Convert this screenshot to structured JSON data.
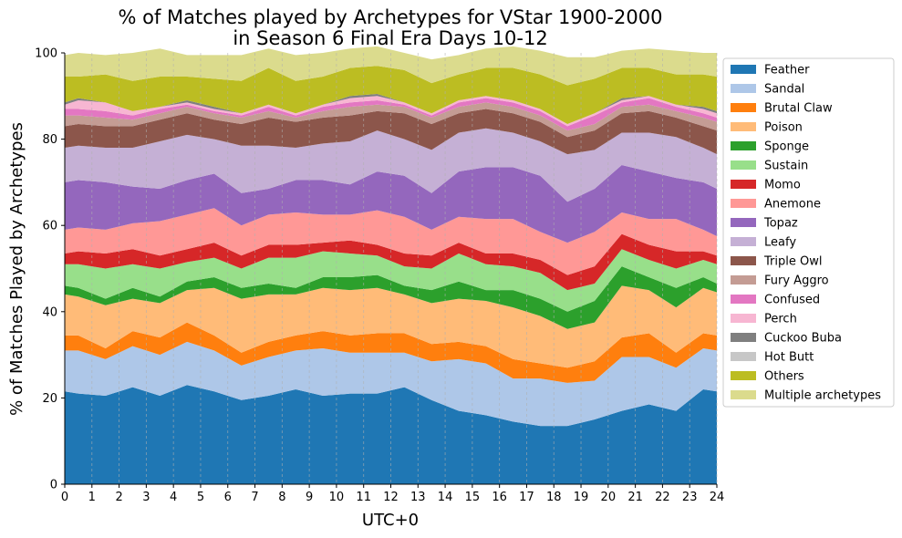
{
  "chart_data": {
    "type": "area",
    "stacked": true,
    "title_lines": [
      "% of Matches played by Archetypes for VStar 1900-2000",
      "in Season 6 Final Era Days 10-12"
    ],
    "xlabel": "UTC+0",
    "ylabel": "% of Matches Played by Archetypes",
    "xlim": [
      0,
      24
    ],
    "ylim": [
      0,
      100
    ],
    "x_ticks": [
      0,
      1,
      2,
      3,
      4,
      5,
      6,
      7,
      8,
      9,
      10,
      11,
      12,
      13,
      14,
      15,
      16,
      17,
      18,
      19,
      20,
      21,
      22,
      23,
      24
    ],
    "x_tick_labels": [
      "0",
      "1",
      "2",
      "3",
      "4",
      "5",
      "6",
      "7",
      "8",
      "9",
      "10",
      "11",
      "12",
      "13",
      "14",
      "15",
      "16",
      "17",
      "18",
      "19",
      "20",
      "21",
      "22",
      "23",
      "24"
    ],
    "y_ticks": [
      0,
      20,
      40,
      60,
      80,
      100
    ],
    "y_tick_labels": [
      "0",
      "20",
      "40",
      "60",
      "80",
      "100"
    ],
    "grid": "x-dashed",
    "legend_position": "outside-right",
    "x": [
      0,
      0.5,
      1.5,
      2.5,
      3.5,
      4.5,
      5.5,
      6.5,
      7.5,
      8.5,
      9.5,
      10.5,
      11.5,
      12.5,
      13.5,
      14.5,
      15.5,
      16.5,
      17.5,
      18.5,
      19.5,
      20.5,
      21.5,
      22.5,
      23.5,
      24
    ],
    "series": [
      {
        "name": "Feather",
        "color": "#1f77b4",
        "values": [
          21.5,
          21,
          20.5,
          22.5,
          20.5,
          23,
          21.5,
          19.5,
          20.5,
          22,
          20.5,
          21,
          21,
          22.5,
          19.5,
          17,
          16,
          14.5,
          13.5,
          13.5,
          15,
          17,
          18.5,
          17,
          22,
          21.5
        ]
      },
      {
        "name": "Sandal",
        "color": "#aec7e8",
        "values": [
          9.5,
          10,
          8.5,
          9.5,
          9.5,
          10,
          9.5,
          8,
          9,
          9,
          11,
          9.5,
          9.5,
          8,
          9,
          12,
          12,
          10,
          11,
          10,
          9,
          12.5,
          11,
          10,
          9.5,
          9.5
        ]
      },
      {
        "name": "Brutal Claw",
        "color": "#ff7f0e",
        "values": [
          3.5,
          3.5,
          2.5,
          3.5,
          4,
          4.5,
          3.5,
          3,
          3.5,
          3.5,
          4,
          4,
          4.5,
          4.5,
          4,
          4,
          4,
          4.5,
          3.5,
          3.5,
          4.5,
          4.5,
          5.5,
          3.5,
          3.5,
          3.5
        ]
      },
      {
        "name": "Poison",
        "color": "#ffbb78",
        "values": [
          9.5,
          9,
          10,
          7.5,
          8,
          7.5,
          11,
          12.5,
          11,
          9.5,
          10,
          10.5,
          10.5,
          9,
          9.5,
          10,
          10.5,
          12,
          11,
          9,
          9,
          12,
          10,
          10.5,
          10.5,
          10
        ]
      },
      {
        "name": "Sponge",
        "color": "#2ca02c",
        "values": [
          2,
          2,
          1.5,
          2.5,
          1.5,
          2,
          2.5,
          2.5,
          2.5,
          1.5,
          2.5,
          3,
          3,
          2,
          3,
          4,
          2.5,
          4,
          4,
          4,
          5,
          4.5,
          3,
          4.5,
          2.5,
          2
        ]
      },
      {
        "name": "Sustain",
        "color": "#98df8a",
        "values": [
          5,
          5.5,
          7,
          5.5,
          6.5,
          4.5,
          4.5,
          4.5,
          6,
          7,
          6,
          5.5,
          4.5,
          4.5,
          5,
          6.5,
          6,
          5.5,
          6,
          5,
          4,
          4,
          4,
          4.5,
          4,
          4.5
        ]
      },
      {
        "name": "Momo",
        "color": "#d62728",
        "values": [
          2.5,
          3,
          3.5,
          3.5,
          3,
          3,
          3.5,
          3,
          3,
          3,
          2,
          3,
          2.5,
          3,
          3,
          2.5,
          2.5,
          3,
          3,
          3.5,
          4,
          3.5,
          3.5,
          4,
          2,
          2
        ]
      },
      {
        "name": "Anemone",
        "color": "#ff9896",
        "values": [
          5.5,
          5.5,
          5.5,
          6,
          8,
          8,
          8,
          7,
          7,
          7.5,
          6.5,
          6,
          8,
          8.5,
          6,
          6,
          8,
          8,
          6.5,
          7.5,
          8,
          5,
          6,
          7.5,
          5,
          4.5
        ]
      },
      {
        "name": "Topaz",
        "color": "#9467bd",
        "values": [
          11,
          11,
          11,
          8.5,
          7.5,
          8,
          8,
          7.5,
          6,
          7.5,
          8,
          7,
          9,
          9.5,
          8.5,
          10.5,
          12,
          12,
          13,
          9.5,
          10,
          11,
          11,
          9.5,
          11,
          11
        ]
      },
      {
        "name": "Leafy",
        "color": "#c5b0d5",
        "values": [
          8,
          8,
          8,
          9,
          11,
          10.5,
          8,
          11,
          10,
          7.5,
          8.5,
          10,
          9.5,
          8.5,
          10,
          9,
          9,
          8,
          8,
          11,
          9,
          7.5,
          9,
          9.5,
          8,
          8
        ]
      },
      {
        "name": "Triple Owl",
        "color": "#8c564b",
        "values": [
          5,
          5,
          5,
          5,
          5,
          5,
          4.5,
          5,
          6.5,
          6,
          6,
          6,
          4.5,
          6,
          6,
          4.5,
          4.5,
          4.5,
          4.5,
          4,
          4.5,
          4.5,
          5,
          4.5,
          5,
          5.5
        ]
      },
      {
        "name": "Fury Aggro",
        "color": "#c49c94",
        "values": [
          2.5,
          2,
          2,
          1.5,
          1.5,
          1.5,
          1.5,
          1.5,
          1.5,
          1,
          1.5,
          2,
          1.5,
          1.5,
          1.5,
          1.5,
          1.5,
          1.5,
          1.5,
          1.5,
          1.5,
          1.5,
          1.5,
          1.5,
          2,
          2
        ]
      },
      {
        "name": "Confused",
        "color": "#e377c2",
        "values": [
          1.5,
          1.5,
          1.5,
          1,
          1,
          0.5,
          0.5,
          0.5,
          1,
          0.5,
          1,
          1,
          1,
          0.5,
          0.5,
          1,
          1,
          1,
          1,
          1,
          2,
          1,
          1.5,
          1,
          1,
          1
        ]
      },
      {
        "name": "Perch",
        "color": "#f7b6d2",
        "values": [
          1,
          2,
          2,
          1,
          0.5,
          0.5,
          0.5,
          0.5,
          0.5,
          0.5,
          0.5,
          1,
          1,
          0.5,
          0.5,
          0.5,
          0.5,
          0.5,
          0.5,
          0.5,
          0.5,
          0.5,
          0.5,
          0.5,
          1,
          1
        ]
      },
      {
        "name": "Cuckoo Buba",
        "color": "#7f7f7f",
        "values": [
          0.5,
          0.5,
          0,
          0,
          0,
          0.5,
          0.5,
          0,
          0,
          0,
          0,
          0.5,
          0.5,
          0,
          0,
          0,
          0,
          0,
          0,
          0,
          0,
          0.5,
          0,
          0,
          0.5,
          0.5
        ]
      },
      {
        "name": "Hot Butt",
        "color": "#c7c7c7",
        "values": [
          0,
          0,
          0,
          0,
          0,
          0,
          0,
          0,
          0,
          0,
          0,
          0,
          0,
          0,
          0,
          0,
          0,
          0,
          0,
          0,
          0,
          0,
          0,
          0,
          0,
          0
        ]
      },
      {
        "name": "Others",
        "color": "#bcbd22",
        "values": [
          6,
          5,
          6.5,
          7,
          7,
          5.5,
          6.5,
          7.5,
          8.5,
          7.5,
          6.5,
          6.5,
          6.5,
          7.5,
          7,
          6,
          6.5,
          7.5,
          8,
          9,
          8,
          7,
          6.5,
          7,
          7.5,
          8
        ]
      },
      {
        "name": "Multiple archetypes",
        "color": "#dbdb8d",
        "values": [
          5,
          5.5,
          4.5,
          6.5,
          6.5,
          5,
          5.5,
          6,
          4.5,
          6,
          5.5,
          4.5,
          4.5,
          4,
          5.5,
          4.5,
          4.5,
          5,
          5.5,
          6.5,
          5,
          4,
          4.5,
          5.5,
          5,
          5.5
        ]
      }
    ]
  }
}
